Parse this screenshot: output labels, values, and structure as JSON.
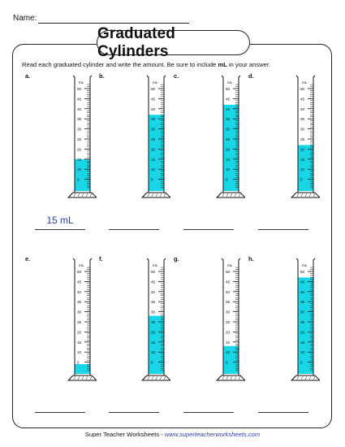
{
  "header": {
    "name_label": "Name:"
  },
  "title": "Graduated Cylinders",
  "instructions": {
    "before": "Read each graduated cylinder and write the amount.  Be sure to include ",
    "bold": "mL",
    "after": " in your answer."
  },
  "cylinder": {
    "unit_label": "mL",
    "tick_labels": [
      "50",
      "45",
      "40",
      "35",
      "30",
      "25",
      "20",
      "15",
      "10",
      "5"
    ],
    "liquid_color": "#19d6e6"
  },
  "items": [
    {
      "letter": "a.",
      "level_ml": 15,
      "answer": "15 mL"
    },
    {
      "letter": "b.",
      "level_ml": 37,
      "answer": ""
    },
    {
      "letter": "c.",
      "level_ml": 42,
      "answer": ""
    },
    {
      "letter": "d.",
      "level_ml": 22,
      "answer": ""
    },
    {
      "letter": "e.",
      "level_ml": 4,
      "answer": ""
    },
    {
      "letter": "f.",
      "level_ml": 28,
      "answer": ""
    },
    {
      "letter": "g.",
      "level_ml": 13,
      "answer": ""
    },
    {
      "letter": "h.",
      "level_ml": 47,
      "answer": ""
    }
  ],
  "footer": {
    "text": "Super Teacher Worksheets - ",
    "url": "www.superteacherworksheets.com"
  }
}
